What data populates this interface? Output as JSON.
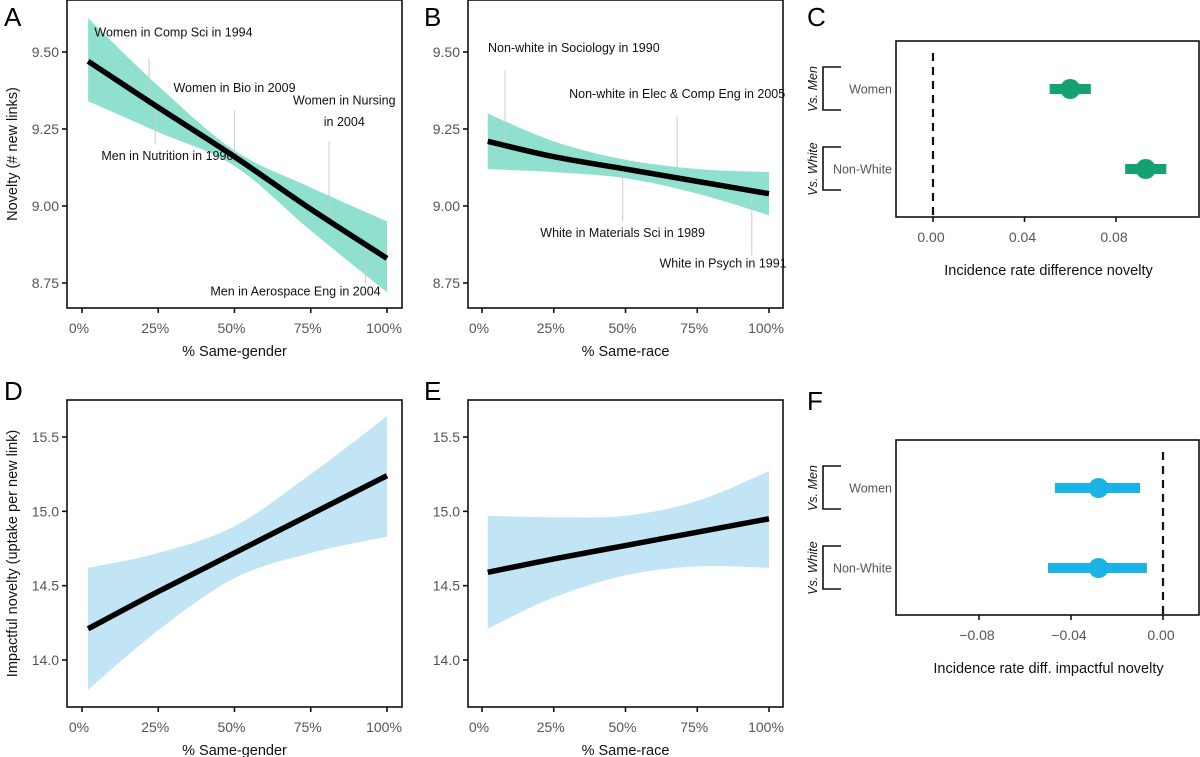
{
  "figure": {
    "colors": {
      "teal_ribbon": "#90e0cf",
      "blue_ribbon": "#c2e5f6",
      "fit_line": "#000000",
      "green_point": "#16a173",
      "blue_point": "#1ab3e6",
      "annotation_line": "#cccccc"
    }
  },
  "chart_data": [
    {
      "panel": "A",
      "type": "line",
      "xlabel": "% Same-gender",
      "ylabel": "Novelty (# new links)",
      "xlim": [
        0,
        100
      ],
      "ylim": [
        8.68,
        9.67
      ],
      "xticks": [
        0,
        25,
        50,
        75,
        100
      ],
      "xtick_labels": [
        "0%",
        "25%",
        "50%",
        "75%",
        "100%"
      ],
      "yticks": [
        8.75,
        9.0,
        9.25,
        9.5
      ],
      "ytick_labels": [
        "8.75",
        "9.00",
        "9.25",
        "9.50"
      ],
      "series": [
        {
          "name": "fit",
          "x": [
            2,
            25,
            50,
            75,
            100
          ],
          "y": [
            9.47,
            9.32,
            9.16,
            8.99,
            8.83
          ]
        },
        {
          "name": "ci_upper",
          "x": [
            2,
            25,
            50,
            75,
            100
          ],
          "y": [
            9.61,
            9.39,
            9.18,
            9.06,
            8.95
          ]
        },
        {
          "name": "ci_lower",
          "x": [
            2,
            25,
            50,
            75,
            100
          ],
          "y": [
            9.34,
            9.24,
            9.13,
            8.92,
            8.72
          ]
        }
      ],
      "annotations": [
        {
          "text": "Women in Comp Sci in 1994",
          "x": 22,
          "y": 9.33,
          "label_y": 9.55,
          "line_top": 9.48,
          "label_x": 30
        },
        {
          "text": "Women in Bio in 2009",
          "x": 50,
          "y": 9.15,
          "label_y": 9.37,
          "line_top": 9.31,
          "label_x": 50
        },
        {
          "text": "Women in Nursing",
          "text2": "in 2004",
          "x": 81,
          "y": 8.96,
          "label_y": 9.33,
          "label_y2": 9.26,
          "line_top": 9.21,
          "label_x": 86
        },
        {
          "text": "Men in Nutrition in 1990",
          "x": 24,
          "y": 9.33,
          "label_y": 9.15,
          "line_bottom": 9.2,
          "label_x": 28
        },
        {
          "text": "Men in Aerospace Eng in 2004",
          "x": 93,
          "y": 8.87,
          "label_y": 8.71,
          "line_bottom": 8.75,
          "label_x": 70
        }
      ],
      "fill_color": "#90e0cf"
    },
    {
      "panel": "B",
      "type": "line",
      "xlabel": "% Same-race",
      "ylabel": "",
      "xlim": [
        0,
        100
      ],
      "ylim": [
        8.68,
        9.67
      ],
      "xticks": [
        0,
        25,
        50,
        75,
        100
      ],
      "xtick_labels": [
        "0%",
        "25%",
        "50%",
        "75%",
        "100%"
      ],
      "yticks": [
        8.75,
        9.0,
        9.25,
        9.5
      ],
      "ytick_labels": [
        "8.75",
        "9.00",
        "9.25",
        "9.50"
      ],
      "series": [
        {
          "name": "fit",
          "x": [
            2,
            25,
            50,
            75,
            100
          ],
          "y": [
            9.21,
            9.16,
            9.12,
            9.08,
            9.04
          ]
        },
        {
          "name": "ci_upper",
          "x": [
            2,
            25,
            50,
            75,
            100
          ],
          "y": [
            9.3,
            9.21,
            9.15,
            9.12,
            9.11
          ]
        },
        {
          "name": "ci_lower",
          "x": [
            2,
            25,
            50,
            75,
            100
          ],
          "y": [
            9.12,
            9.11,
            9.09,
            9.04,
            8.97
          ]
        }
      ],
      "annotations": [
        {
          "text": "Non-white in Sociology in 1990",
          "x": 8,
          "y": 9.2,
          "label_y": 9.5,
          "line_top": 9.44,
          "label_x": 32
        },
        {
          "text": "Non-white in Elec & Comp Eng in 2005",
          "x": 68,
          "y": 9.09,
          "label_y": 9.35,
          "line_top": 9.29,
          "label_x": 68
        },
        {
          "text": "White in Materials Sci in 1989",
          "x": 49,
          "y": 9.12,
          "label_y": 8.9,
          "line_bottom": 8.95,
          "label_x": 49
        },
        {
          "text": "White in Psych in 1991",
          "x": 94,
          "y": 9.05,
          "label_y": 8.8,
          "line_bottom": 8.84,
          "label_x": 84
        }
      ],
      "fill_color": "#90e0cf"
    },
    {
      "panel": "C",
      "type": "scatter",
      "xlabel": "Incidence rate difference novelty",
      "xlim": [
        -0.016,
        0.116
      ],
      "xticks": [
        0.0,
        0.04,
        0.08
      ],
      "xtick_labels": [
        "0.00",
        "0.04",
        "0.08"
      ],
      "reference_line": 0.0,
      "groups": [
        {
          "label": "Vs. Men",
          "categories": [
            "Women"
          ]
        },
        {
          "label": "Vs. White",
          "categories": [
            "Non-White"
          ]
        }
      ],
      "points": [
        {
          "category": "Women",
          "group": "Vs. Men",
          "estimate": 0.06,
          "ci_low": 0.051,
          "ci_high": 0.069
        },
        {
          "category": "Non-White",
          "group": "Vs. White",
          "estimate": 0.093,
          "ci_low": 0.084,
          "ci_high": 0.102
        }
      ],
      "point_color": "#16a173"
    },
    {
      "panel": "D",
      "type": "line",
      "xlabel": "% Same-gender",
      "ylabel": "Impactful novelty (uptake per new link)",
      "xlim": [
        0,
        100
      ],
      "ylim": [
        13.71,
        15.76
      ],
      "xticks": [
        0,
        25,
        50,
        75,
        100
      ],
      "xtick_labels": [
        "0%",
        "25%",
        "50%",
        "75%",
        "100%"
      ],
      "yticks": [
        14.0,
        14.5,
        15.0,
        15.5
      ],
      "ytick_labels": [
        "14.0",
        "14.5",
        "15.0",
        "15.5"
      ],
      "series": [
        {
          "name": "fit",
          "x": [
            2,
            25,
            50,
            75,
            100
          ],
          "y": [
            14.21,
            14.46,
            14.72,
            14.98,
            15.24
          ]
        },
        {
          "name": "ci_upper",
          "x": [
            2,
            25,
            50,
            75,
            100
          ],
          "y": [
            14.62,
            14.72,
            14.9,
            15.25,
            15.64
          ]
        },
        {
          "name": "ci_lower",
          "x": [
            2,
            25,
            50,
            75,
            100
          ],
          "y": [
            13.8,
            14.2,
            14.55,
            14.72,
            14.83
          ]
        }
      ],
      "annotations": [],
      "fill_color": "#c2e5f6"
    },
    {
      "panel": "E",
      "type": "line",
      "xlabel": "% Same-race",
      "ylabel": "",
      "xlim": [
        0,
        100
      ],
      "ylim": [
        13.71,
        15.76
      ],
      "xticks": [
        0,
        25,
        50,
        75,
        100
      ],
      "xtick_labels": [
        "0%",
        "25%",
        "50%",
        "75%",
        "100%"
      ],
      "yticks": [
        14.0,
        14.5,
        15.0,
        15.5
      ],
      "ytick_labels": [
        "14.0",
        "14.5",
        "15.0",
        "15.5"
      ],
      "series": [
        {
          "name": "fit",
          "x": [
            2,
            25,
            50,
            75,
            100
          ],
          "y": [
            14.59,
            14.68,
            14.77,
            14.86,
            14.95
          ]
        },
        {
          "name": "ci_upper",
          "x": [
            2,
            25,
            50,
            75,
            100
          ],
          "y": [
            14.97,
            14.96,
            14.97,
            15.07,
            15.27
          ]
        },
        {
          "name": "ci_lower",
          "x": [
            2,
            25,
            50,
            75,
            100
          ],
          "y": [
            14.21,
            14.42,
            14.57,
            14.63,
            14.62
          ]
        }
      ],
      "annotations": [],
      "fill_color": "#c2e5f6"
    },
    {
      "panel": "F",
      "type": "scatter",
      "xlabel": "Incidence rate diff. impactful novelty",
      "xlim": [
        -0.116,
        0.016
      ],
      "xticks": [
        -0.08,
        -0.04,
        0.0
      ],
      "xtick_labels": [
        "−0.08",
        "−0.04",
        "0.00"
      ],
      "reference_line": 0.0,
      "groups": [
        {
          "label": "Vs. Men",
          "categories": [
            "Women"
          ]
        },
        {
          "label": "Vs. White",
          "categories": [
            "Non-White"
          ]
        }
      ],
      "points": [
        {
          "category": "Women",
          "group": "Vs. Men",
          "estimate": -0.028,
          "ci_low": -0.047,
          "ci_high": -0.01
        },
        {
          "category": "Non-White",
          "group": "Vs. White",
          "estimate": -0.028,
          "ci_low": -0.05,
          "ci_high": -0.007
        }
      ],
      "point_color": "#1ab3e6"
    }
  ]
}
